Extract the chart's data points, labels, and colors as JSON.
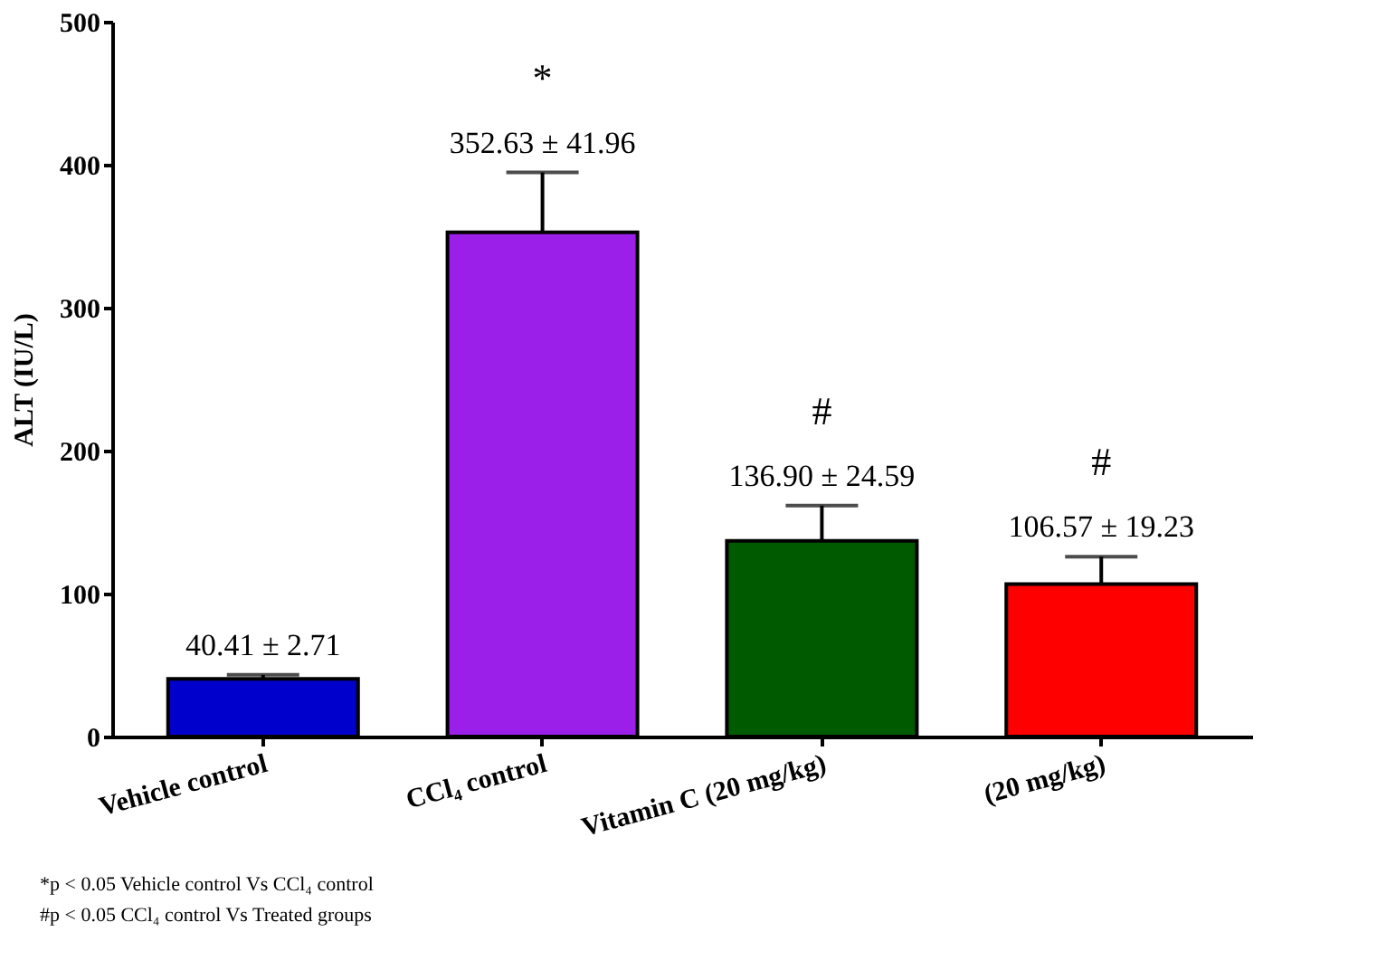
{
  "chart_data": {
    "type": "bar",
    "ylabel": "ALT (IU/L)",
    "categories": [
      "Vehicle control",
      "CCl₄ control",
      "Vitamin C (20 mg/kg)",
      "(20 mg/kg)"
    ],
    "values": [
      40.41,
      352.63,
      136.9,
      106.57
    ],
    "colors": [
      "#0000cc",
      "#9b1fe8",
      "#005a00",
      "#ff0000"
    ],
    "errors": [
      [
        40.41,
        43.12
      ],
      [
        352.63,
        394.59
      ],
      [
        136.9,
        161.49
      ],
      [
        106.57,
        125.8
      ]
    ],
    "value_labels": [
      "40.41 ± 2.71",
      "352.63 ± 41.96",
      "136.90 ± 24.59",
      "106.57 ± 19.23"
    ],
    "ylim": [
      0,
      500
    ],
    "yticks": [
      0,
      100,
      200,
      300,
      400,
      500
    ],
    "grid": false,
    "annotations": [
      "*",
      "#",
      "#",
      "*p < 0.05 Vehicle control Vs CCl₄ control",
      "#p < 0.05 CCl₄ control Vs Treated groups"
    ]
  }
}
